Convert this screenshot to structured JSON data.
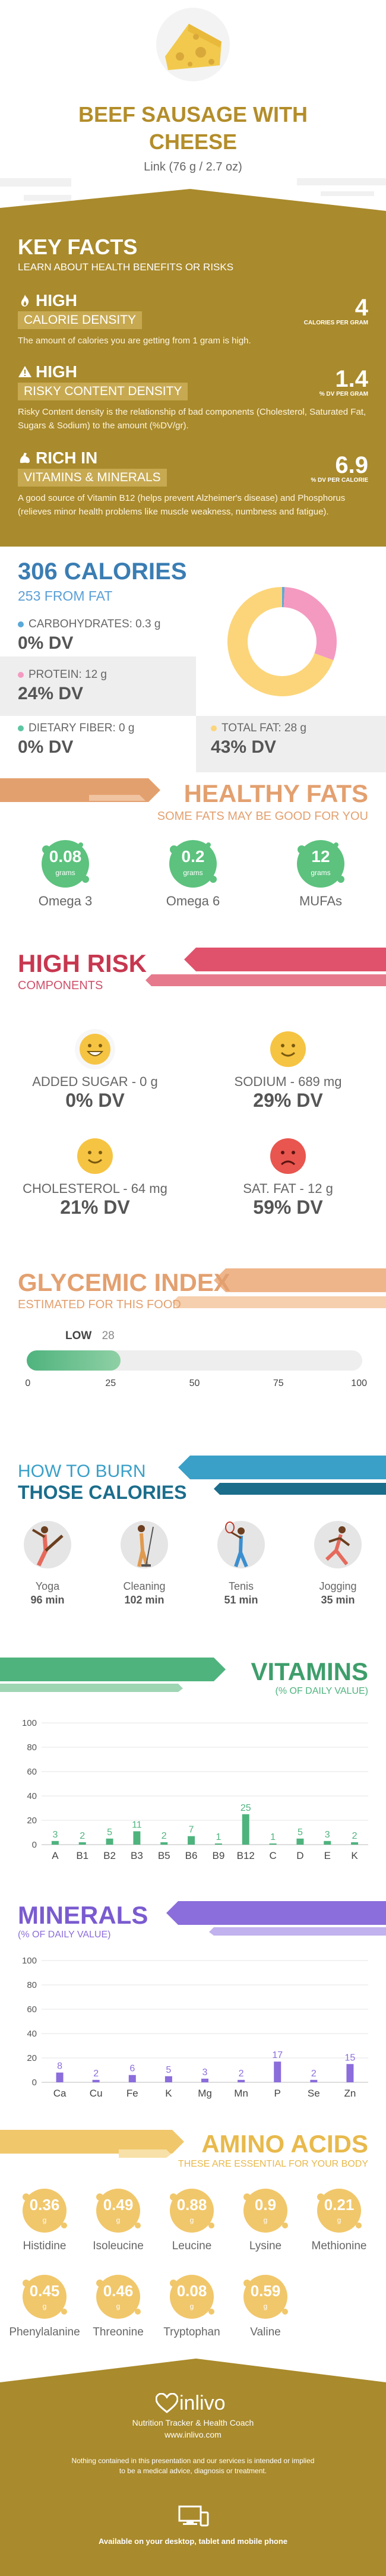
{
  "header": {
    "title_line1": "BEEF SAUSAGE WITH",
    "title_line2": "CHEESE",
    "serving": "Link (76 g / 2.7 oz)"
  },
  "key_facts": {
    "title": "KEY FACTS",
    "subtitle": "LEARN ABOUT HEALTH BENEFITS OR RISKS",
    "facts": [
      {
        "level": "HIGH",
        "label": "CALORIE DENSITY",
        "value": "4",
        "unit": "CALORIES PER GRAM",
        "desc": "The amount of calories you are getting from 1 gram is high.",
        "icon": "fire-icon"
      },
      {
        "level": "HIGH",
        "label": "RISKY CONTENT DENSITY",
        "value": "1.4",
        "unit": "% DV PER GRAM",
        "desc": "Risky Content density is the relationship of bad components (Cholesterol, Saturated Fat, Sugars & Sodium) to the amount (%DV/gr).",
        "icon": "warning-icon"
      },
      {
        "level": "RICH  IN",
        "label": "VITAMINS & MINERALS",
        "value": "6.9",
        "unit": "% DV PER CALORIE",
        "desc": "A good source of Vitamin B12 (helps prevent Alzheimer's disease) and Phosphorus (relieves minor health problems like muscle weakness, numbness and fatigue).",
        "icon": "flex-icon"
      }
    ]
  },
  "calories": {
    "title": "306 CALORIES",
    "subtitle": "253 FROM FAT",
    "carbs": {
      "label": "CARBOHYDRATES: 0.3 g",
      "dv": "0% DV",
      "color": "#5aa9d9"
    },
    "protein": {
      "label": "PROTEIN: 12 g",
      "dv": "24% DV",
      "color": "#f49ac1"
    },
    "fiber": {
      "label": "DIETARY FIBER: 0 g",
      "dv": "0% DV",
      "color": "#5cc6a1"
    },
    "fat": {
      "label": "TOTAL FAT: 28 g",
      "dv": "43% DV",
      "color": "#fcd57a"
    },
    "donut": {
      "carbs_g": 0.3,
      "protein_g": 12,
      "fat_g": 28
    }
  },
  "healthy_fats": {
    "title": "HEALTHY FATS",
    "subtitle": "SOME FATS MAY BE GOOD FOR YOU",
    "unit": "grams",
    "items": [
      {
        "value": "0.08",
        "name": "Omega 3"
      },
      {
        "value": "0.2",
        "name": "Omega 6"
      },
      {
        "value": "12",
        "name": "MUFAs"
      }
    ]
  },
  "high_risk": {
    "title": "HIGH RISK",
    "subtitle": "COMPONENTS",
    "items": [
      {
        "label": "ADDED SUGAR - 0 g",
        "dv": "0% DV",
        "face": "grin-face-icon"
      },
      {
        "label": "SODIUM - 689 mg",
        "dv": "29% DV",
        "face": "smile-face-icon"
      },
      {
        "label": "CHOLESTEROL - 64 mg",
        "dv": "21% DV",
        "face": "smile-face-icon"
      },
      {
        "label": "SAT. FAT - 12 g",
        "dv": "59% DV",
        "face": "sad-face-icon"
      }
    ]
  },
  "glycemic": {
    "title": "GLYCEMIC INDEX",
    "subtitle": "ESTIMATED FOR THIS FOOD",
    "level": "LOW",
    "value": "28",
    "fill_percent": 28,
    "ticks": [
      "0",
      "25",
      "50",
      "75",
      "100"
    ]
  },
  "burn": {
    "title_line1": "HOW TO BURN",
    "title_line2": "THOSE CALORIES",
    "activities": [
      {
        "name": "Yoga",
        "minutes": "96 min",
        "icon": "yoga-icon"
      },
      {
        "name": "Cleaning",
        "minutes": "102 min",
        "icon": "cleaning-icon"
      },
      {
        "name": "Tenis",
        "minutes": "51 min",
        "icon": "tennis-icon"
      },
      {
        "name": "Jogging",
        "minutes": "35 min",
        "icon": "jogging-icon"
      }
    ]
  },
  "vitamins": {
    "title": "VITAMINS",
    "subtitle": "(% OF DAILY VALUE)",
    "chart_data": {
      "type": "bar",
      "categories": [
        "A",
        "B1",
        "B2",
        "B3",
        "B5",
        "B6",
        "B9",
        "B12",
        "C",
        "D",
        "E",
        "K"
      ],
      "values": [
        3,
        2,
        5,
        11,
        2,
        7,
        1,
        25,
        1,
        5,
        3,
        2
      ],
      "yticks": [
        0,
        20,
        40,
        60,
        80,
        100
      ],
      "ylim": [
        0,
        100
      ],
      "color": "#4fb37e"
    }
  },
  "minerals": {
    "title": "MINERALS",
    "subtitle": "(% OF DAILY VALUE)",
    "chart_data": {
      "type": "bar",
      "categories": [
        "Ca",
        "Cu",
        "Fe",
        "K",
        "Mg",
        "Mn",
        "P",
        "Se",
        "Zn"
      ],
      "values": [
        8,
        2,
        6,
        5,
        3,
        2,
        17,
        2,
        15
      ],
      "yticks": [
        0,
        20,
        40,
        60,
        80,
        100
      ],
      "ylim": [
        0,
        100
      ],
      "color": "#8b6ddb"
    }
  },
  "amino": {
    "title": "AMINO ACIDS",
    "subtitle": "THESE ARE ESSENTIAL FOR YOUR BODY",
    "unit": "g",
    "items": [
      {
        "value": "0.36",
        "name": "Histidine"
      },
      {
        "value": "0.49",
        "name": "Isoleucine"
      },
      {
        "value": "0.88",
        "name": "Leucine"
      },
      {
        "value": "0.9",
        "name": "Lysine"
      },
      {
        "value": "0.21",
        "name": "Methionine"
      },
      {
        "value": "0.45",
        "name": "Phenylalanine"
      },
      {
        "value": "0.46",
        "name": "Threonine"
      },
      {
        "value": "0.08",
        "name": "Tryptophan"
      },
      {
        "value": "0.59",
        "name": "Valine"
      }
    ]
  },
  "footer": {
    "brand": "inlivo",
    "tagline": "Nutrition Tracker & Health Coach",
    "site": "www.inlivo.com",
    "disclaimer1": "Nothing contained in this presentation and our services is intended or implied",
    "disclaimer2": "to be a medical advice, diagnosis or treatment.",
    "available": "Available on your desktop, tablet and mobile phone"
  }
}
